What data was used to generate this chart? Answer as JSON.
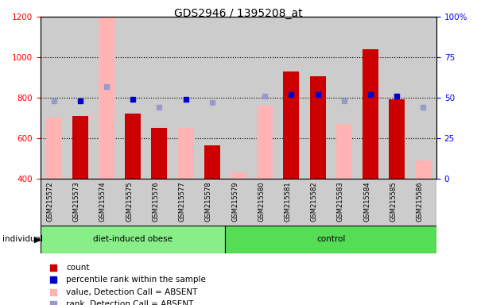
{
  "title": "GDS2946 / 1395208_at",
  "samples": [
    "GSM215572",
    "GSM215573",
    "GSM215574",
    "GSM215575",
    "GSM215576",
    "GSM215577",
    "GSM215578",
    "GSM215579",
    "GSM215580",
    "GSM215581",
    "GSM215582",
    "GSM215583",
    "GSM215584",
    "GSM215585",
    "GSM215586"
  ],
  "n_group1": 7,
  "n_group2": 8,
  "count_values": [
    null,
    710,
    null,
    720,
    650,
    null,
    565,
    null,
    null,
    930,
    905,
    null,
    1040,
    790,
    null
  ],
  "count_absent_values": [
    700,
    null,
    1200,
    null,
    null,
    650,
    null,
    430,
    760,
    null,
    null,
    670,
    null,
    null,
    490
  ],
  "rank_values": [
    null,
    48,
    null,
    49,
    null,
    49,
    null,
    null,
    null,
    52,
    52,
    null,
    52,
    51,
    null
  ],
  "rank_absent_values": [
    48,
    null,
    57,
    null,
    44,
    null,
    47,
    null,
    51,
    null,
    null,
    48,
    null,
    null,
    44
  ],
  "ylim_left": [
    400,
    1200
  ],
  "ylim_right": [
    0,
    100
  ],
  "yticks_left": [
    400,
    600,
    800,
    1000,
    1200
  ],
  "yticks_right": [
    0,
    25,
    50,
    75,
    100
  ],
  "color_count": "#cc0000",
  "color_count_absent": "#ffb3b3",
  "color_rank": "#0000cc",
  "color_rank_absent": "#9999cc",
  "color_group1": "#88ee88",
  "color_group2": "#55dd55",
  "background_color": "#cccccc",
  "grid_color": "black",
  "grid_style": ":",
  "bar_width": 0.6
}
